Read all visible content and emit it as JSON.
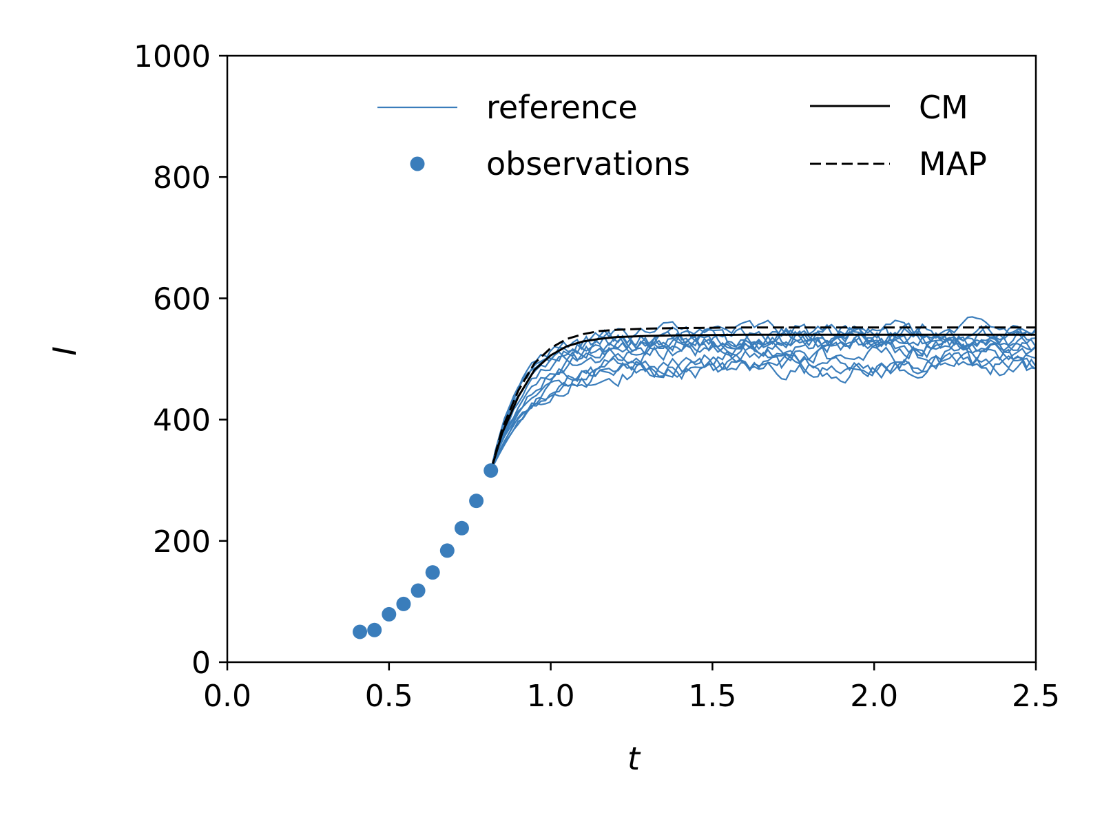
{
  "chart_data": {
    "type": "line",
    "title": "",
    "xlabel": "t",
    "ylabel": "I",
    "xlim": [
      0.0,
      2.5
    ],
    "ylim": [
      0,
      1000
    ],
    "xticks": [
      "0.0",
      "0.5",
      "1.0",
      "1.5",
      "2.0",
      "2.5"
    ],
    "yticks": [
      "0",
      "200",
      "400",
      "600",
      "800",
      "1000"
    ],
    "grid": false,
    "legend_position": "top",
    "legend": [
      {
        "label": "reference",
        "style": "thin-line",
        "color": "#3a7dbb"
      },
      {
        "label": "observations",
        "style": "dot",
        "color": "#3a7dbb"
      },
      {
        "label": "CM",
        "style": "solid",
        "color": "#000000"
      },
      {
        "label": "MAP",
        "style": "dashed",
        "color": "#000000"
      }
    ],
    "colors": {
      "reference": "#3a7dbb",
      "observations": "#3a7dbb",
      "CM": "#000000",
      "MAP": "#000000"
    },
    "observations": {
      "x": [
        0.41,
        0.455,
        0.5,
        0.545,
        0.59,
        0.635,
        0.68,
        0.725,
        0.77,
        0.815
      ],
      "y": [
        50,
        53,
        79,
        96,
        118,
        148,
        184,
        221,
        266,
        316
      ]
    },
    "cm": {
      "x": [
        0.815,
        0.85,
        0.9,
        0.95,
        1.0,
        1.05,
        1.1,
        1.15,
        1.2,
        1.3,
        1.4,
        1.6,
        1.8,
        2.0,
        2.2,
        2.5
      ],
      "y": [
        316,
        378,
        438,
        482,
        506,
        521,
        529,
        533,
        536,
        538,
        539,
        540,
        540,
        540,
        540,
        540
      ]
    },
    "map": {
      "x": [
        0.815,
        0.85,
        0.9,
        0.95,
        1.0,
        1.05,
        1.1,
        1.15,
        1.2,
        1.3,
        1.4,
        1.6,
        1.8,
        2.0,
        2.2,
        2.5
      ],
      "y": [
        316,
        385,
        448,
        493,
        518,
        533,
        541,
        546,
        548,
        550,
        551,
        552,
        552,
        552,
        552,
        552
      ]
    },
    "reference": {
      "count": 12,
      "t_start": 0.815,
      "t_end": 2.5,
      "plateau_min": 465,
      "plateau_max": 580,
      "typical_plateau": 515
    }
  }
}
